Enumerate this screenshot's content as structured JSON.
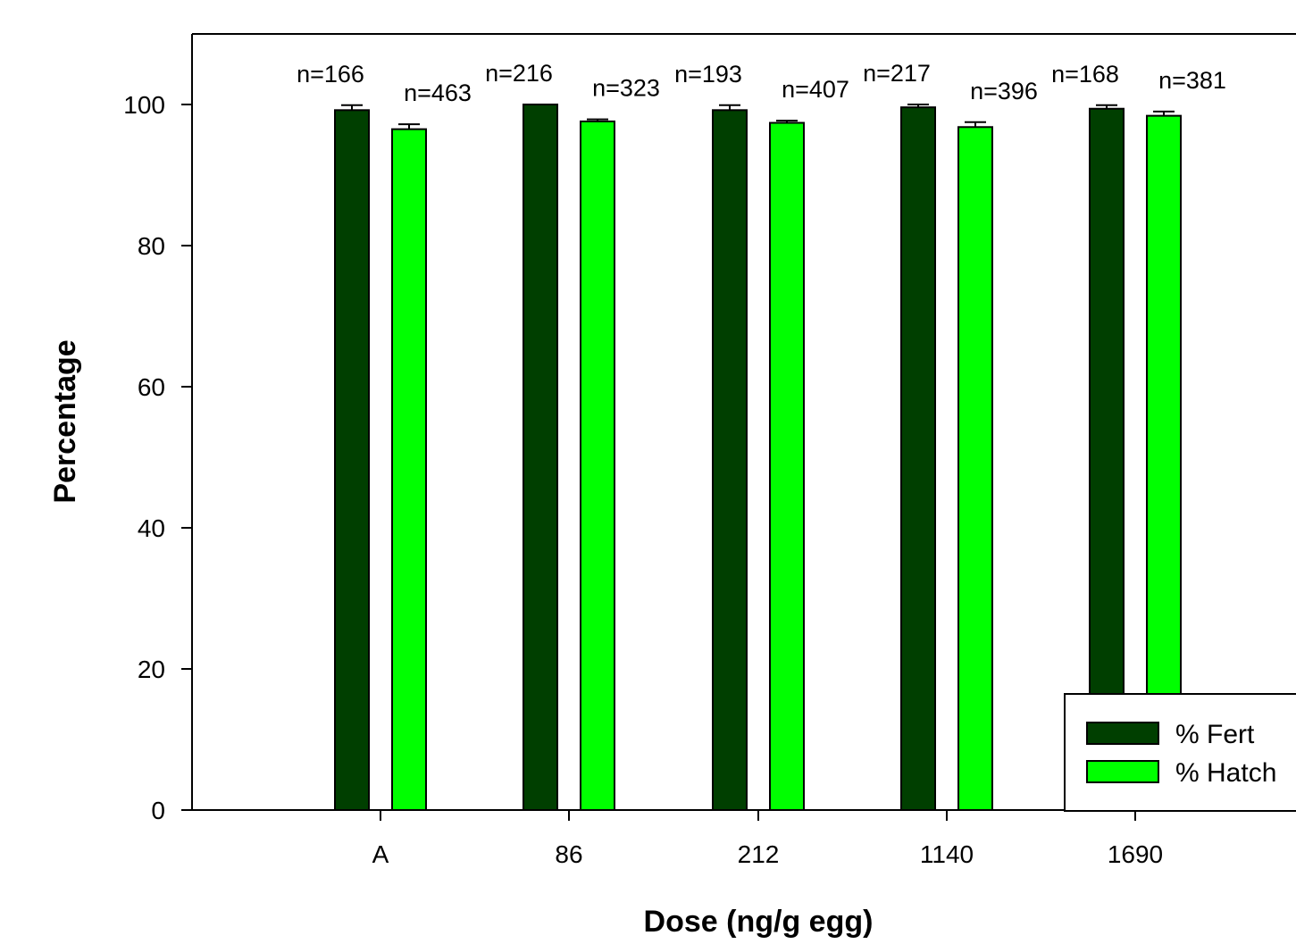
{
  "chart_data": {
    "type": "bar",
    "title": "",
    "xlabel": "Dose (ng/g egg)",
    "ylabel": "Percentage",
    "categories": [
      "A",
      "86",
      "212",
      "1140",
      "1690"
    ],
    "ylim": [
      0,
      110
    ],
    "yticks": [
      0,
      20,
      40,
      60,
      80,
      100
    ],
    "grid": false,
    "legend_position": "bottom-right",
    "series": [
      {
        "name": "% Fert",
        "color": "#003f00",
        "values": [
          99.2,
          100.0,
          99.2,
          99.6,
          99.4
        ],
        "errors": [
          0.7,
          0.0,
          0.7,
          0.4,
          0.5
        ],
        "n_labels": [
          "n=166",
          "n=216",
          "n=193",
          "n=217",
          "n=168"
        ]
      },
      {
        "name": "% Hatch",
        "color": "#00ff00",
        "values": [
          96.5,
          97.6,
          97.4,
          96.8,
          98.4
        ],
        "errors": [
          0.7,
          0.3,
          0.3,
          0.7,
          0.6
        ],
        "n_labels": [
          "n=463",
          "n=323",
          "n=407",
          "n=396",
          "n=381"
        ]
      }
    ]
  }
}
